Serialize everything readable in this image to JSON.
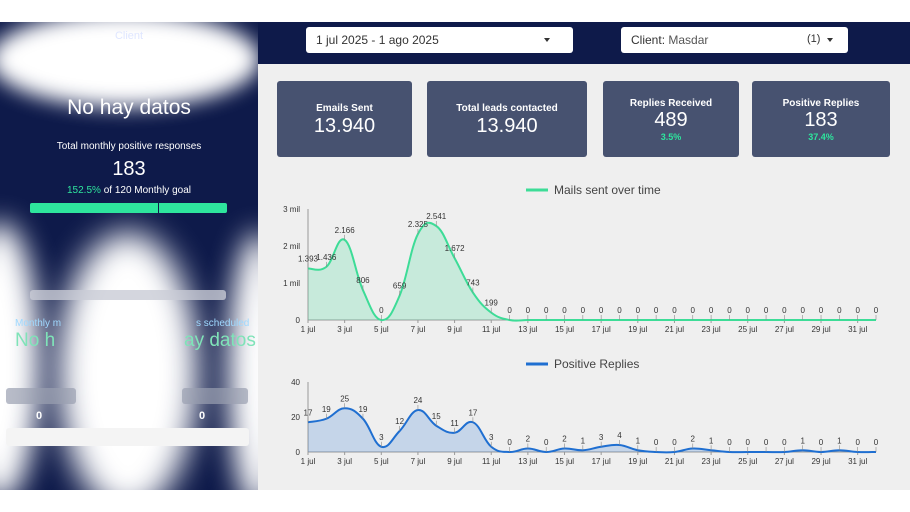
{
  "header": {
    "date_range": "1 jul 2025 - 1 ago 2025",
    "client_label": "Client",
    "client_value": "Masdar",
    "client_count": "(1)"
  },
  "sidebar": {
    "client_title": "Client",
    "no_data_1": "No hay datos",
    "monthly_responses_label": "Total monthly positive responses",
    "monthly_responses_value": "183",
    "goal_percent": "152.5%",
    "goal_text": "of 120 Monthly goal",
    "goal_progress": 1.0,
    "meetings_scheduled_label_fragment_left": "Monthly m",
    "meetings_scheduled_label_fragment_right": "s scheduled",
    "no_data_2_left": "No h",
    "no_data_2_right": "ay datos",
    "zero_left": "0",
    "zero_right": "0"
  },
  "kpis": [
    {
      "label": "Emails Sent",
      "value": "13.940",
      "sub": ""
    },
    {
      "label": "Total leads contacted",
      "value": "13.940",
      "sub": ""
    },
    {
      "label": "Replies Received",
      "value": "489",
      "sub": "3.5%"
    },
    {
      "label": "Positive Replies",
      "value": "183",
      "sub": "37.4%"
    }
  ],
  "colors": {
    "navy": "#0e1a4a",
    "kpi_card": "#475270",
    "accent_green": "#2ee59d",
    "mail_line": "#3ddc97",
    "reply_line": "#1f6fd1"
  },
  "chart_data": [
    {
      "type": "area",
      "legend": "Mails sent over time",
      "x": [
        "1 jul",
        "2 jul",
        "3 jul",
        "4 jul",
        "5 jul",
        "6 jul",
        "7 jul",
        "8 jul",
        "9 jul",
        "10 jul",
        "11 jul",
        "12 jul",
        "13 jul",
        "14 jul",
        "15 jul",
        "16 jul",
        "17 jul",
        "18 jul",
        "19 jul",
        "20 jul",
        "21 jul",
        "22 jul",
        "23 jul",
        "24 jul",
        "25 jul",
        "26 jul",
        "27 jul",
        "28 jul",
        "29 jul",
        "30 jul",
        "31 jul",
        "1 ago"
      ],
      "xticks": [
        "1 jul",
        "3 jul",
        "5 jul",
        "7 jul",
        "9 jul",
        "11 jul",
        "13 jul",
        "15 jul",
        "17 jul",
        "19 jul",
        "21 jul",
        "23 jul",
        "25 jul",
        "27 jul",
        "29 jul",
        "31 jul"
      ],
      "values": [
        1393,
        1436,
        2166,
        806,
        0,
        659,
        2325,
        2541,
        1672,
        743,
        199,
        0,
        0,
        0,
        0,
        0,
        0,
        0,
        0,
        0,
        0,
        0,
        0,
        0,
        0,
        0,
        0,
        0,
        0,
        0,
        0,
        0
      ],
      "labels": [
        "1.393",
        "1.436",
        "2.166",
        "806",
        "0",
        "659",
        "2.325",
        "2.541",
        "1.672",
        "743",
        "199",
        "0",
        "0",
        "0",
        "0",
        "0",
        "0",
        "0",
        "0",
        "0",
        "0",
        "0",
        "0",
        "0",
        "0",
        "0",
        "0",
        "0",
        "0",
        "0",
        "0",
        "0"
      ],
      "ylim": [
        0,
        3000
      ],
      "yticks": [
        "0",
        "1 mil",
        "2 mil",
        "3 mil"
      ]
    },
    {
      "type": "area",
      "legend": "Positive Replies",
      "x": [
        "1 jul",
        "2 jul",
        "3 jul",
        "4 jul",
        "5 jul",
        "6 jul",
        "7 jul",
        "8 jul",
        "9 jul",
        "10 jul",
        "11 jul",
        "12 jul",
        "13 jul",
        "14 jul",
        "15 jul",
        "16 jul",
        "17 jul",
        "18 jul",
        "19 jul",
        "20 jul",
        "21 jul",
        "22 jul",
        "23 jul",
        "24 jul",
        "25 jul",
        "26 jul",
        "27 jul",
        "28 jul",
        "29 jul",
        "30 jul",
        "31 jul",
        "1 ago"
      ],
      "xticks": [
        "1 jul",
        "3 jul",
        "5 jul",
        "7 jul",
        "9 jul",
        "11 jul",
        "13 jul",
        "15 jul",
        "17 jul",
        "19 jul",
        "21 jul",
        "23 jul",
        "25 jul",
        "27 jul",
        "29 jul",
        "31 jul"
      ],
      "values": [
        17,
        19,
        25,
        19,
        3,
        12,
        24,
        15,
        11,
        17,
        3,
        0,
        2,
        0,
        2,
        1,
        3,
        4,
        1,
        0,
        0,
        2,
        1,
        0,
        0,
        0,
        0,
        1,
        0,
        1,
        0,
        0
      ],
      "labels": [
        "17",
        "19",
        "25",
        "19",
        "3",
        "12",
        "24",
        "15",
        "11",
        "17",
        "3",
        "0",
        "2",
        "0",
        "2",
        "1",
        "3",
        "4",
        "1",
        "0",
        "0",
        "2",
        "1",
        "0",
        "0",
        "0",
        "0",
        "1",
        "0",
        "1",
        "0",
        "0"
      ],
      "ylim": [
        0,
        40
      ],
      "yticks": [
        "0",
        "20",
        "40"
      ]
    }
  ]
}
